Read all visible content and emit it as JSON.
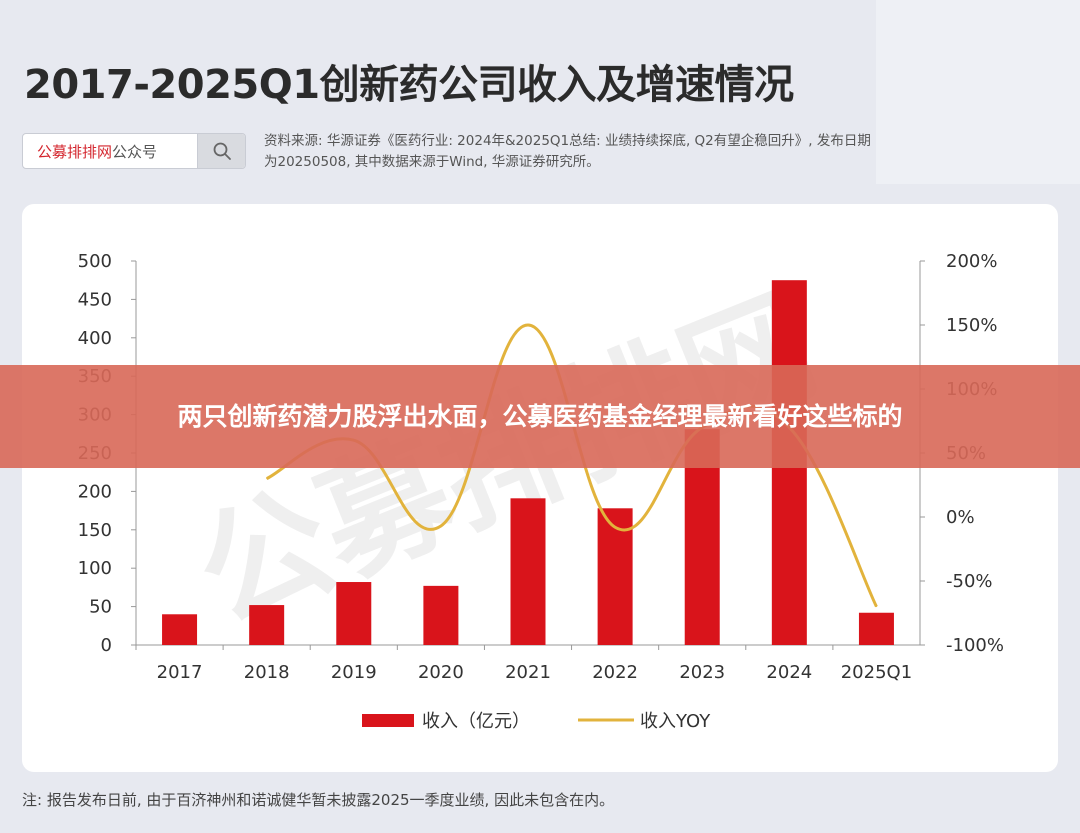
{
  "title": "2017-2025Q1创新药公司收入及增速情况",
  "search": {
    "label_brand": "公募排排网",
    "label_suffix": "公众号",
    "icon": "search-icon"
  },
  "source_note": "资料来源: 华源证券《医药行业: 2024年&2025Q1总结: 业绩持续探底, Q2有望企稳回升》, 发布日期为20250508, 其中数据来源于Wind, 华源证券研究所。",
  "banner": "两只创新药潜力股浮出水面，公募医药基金经理最新看好这些标的",
  "footnote": "注: 报告发布日前, 由于百济神州和诺诚健华暂未披露2025一季度业绩, 因此未包含在内。",
  "watermark": "公募排排网",
  "colors": {
    "bar": "#d9141b",
    "line": "#e2b33c"
  },
  "chart_data": {
    "type": "bar",
    "categories": [
      "2017",
      "2018",
      "2019",
      "2020",
      "2021",
      "2022",
      "2023",
      "2024",
      "2025Q1"
    ],
    "series": [
      {
        "name": "收入（亿元）",
        "type": "bar",
        "axis": "left",
        "values": [
          40,
          52,
          82,
          77,
          191,
          178,
          281,
          475,
          42
        ]
      },
      {
        "name": "收入YOY",
        "type": "line",
        "axis": "right",
        "smooth": true,
        "values": [
          null,
          30,
          60,
          -7,
          150,
          -8,
          70,
          70,
          -70
        ]
      }
    ],
    "y_left": {
      "min": 0,
      "max": 500,
      "ticks": [
        "0",
        "50",
        "100",
        "150",
        "200",
        "250",
        "300",
        "350",
        "400",
        "450",
        "500"
      ]
    },
    "y_right": {
      "min": -100,
      "max": 200,
      "ticks": [
        "-100%",
        "-50%",
        "0%",
        "50%",
        "100%",
        "150%",
        "200%"
      ]
    },
    "legend_position": "bottom",
    "grid": false
  }
}
